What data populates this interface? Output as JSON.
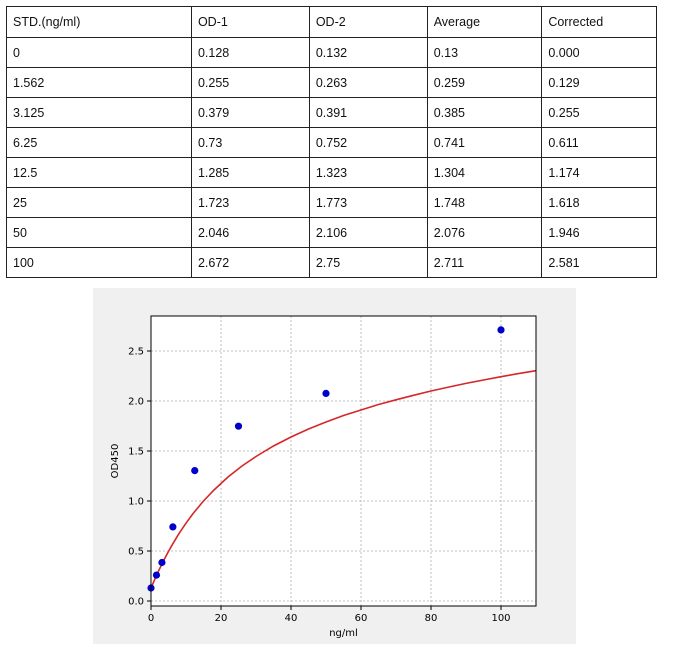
{
  "table": {
    "headers": [
      "STD.(ng/ml)",
      "OD-1",
      "OD-2",
      "Average",
      "Corrected"
    ],
    "rows": [
      [
        "0",
        "0.128",
        "0.132",
        "0.13",
        "0.000"
      ],
      [
        "1.562",
        "0.255",
        "0.263",
        "0.259",
        "0.129"
      ],
      [
        "3.125",
        "0.379",
        "0.391",
        "0.385",
        "0.255"
      ],
      [
        "6.25",
        "0.73",
        "0.752",
        "0.741",
        "0.611"
      ],
      [
        "12.5",
        "1.285",
        "1.323",
        "1.304",
        "1.174"
      ],
      [
        "25",
        "1.723",
        "1.773",
        "1.748",
        "1.618"
      ],
      [
        "50",
        "2.046",
        "2.106",
        "2.076",
        "1.946"
      ],
      [
        "100",
        "2.672",
        "2.75",
        "2.711",
        "2.581"
      ]
    ]
  },
  "chart_data": {
    "type": "scatter",
    "xlabel": "ng/ml",
    "ylabel": "OD450",
    "xlim": [
      0,
      110
    ],
    "ylim": [
      -0.05,
      2.85
    ],
    "xticks": [
      0,
      20,
      40,
      60,
      80,
      100
    ],
    "yticks": [
      0.0,
      0.5,
      1.0,
      1.5,
      2.0,
      2.5
    ],
    "xtick_labels": [
      "0",
      "20",
      "40",
      "60",
      "80",
      "100"
    ],
    "ytick_labels": [
      "0.0",
      "0.5",
      "1.0",
      "1.5",
      "2.0",
      "2.5"
    ],
    "grid": true,
    "series": [
      {
        "kind": "points",
        "x": [
          0,
          1.562,
          3.125,
          6.25,
          12.5,
          25,
          50,
          100
        ],
        "y": [
          0.13,
          0.259,
          0.385,
          0.741,
          1.304,
          1.748,
          2.076,
          2.711
        ],
        "color": "#0000cc"
      },
      {
        "kind": "fitted-curve",
        "color": "#d62728",
        "x": [
          0,
          1,
          2,
          3,
          4,
          5,
          6,
          8,
          10,
          12,
          15,
          18,
          22,
          26,
          30,
          35,
          40,
          45,
          50,
          55,
          60,
          65,
          70,
          75,
          80,
          85,
          90,
          95,
          100,
          105,
          110
        ],
        "y": [
          0.13,
          0.211,
          0.288,
          0.361,
          0.43,
          0.496,
          0.558,
          0.674,
          0.778,
          0.874,
          1.0,
          1.11,
          1.24,
          1.35,
          1.445,
          1.55,
          1.64,
          1.72,
          1.79,
          1.855,
          1.91,
          1.965,
          2.012,
          2.057,
          2.1,
          2.139,
          2.176,
          2.21,
          2.243,
          2.274,
          2.303
        ]
      }
    ]
  },
  "colors": {
    "chart_background": "#f0f0f0",
    "plot_background": "#ffffff",
    "grid": "#b0b0b0"
  }
}
